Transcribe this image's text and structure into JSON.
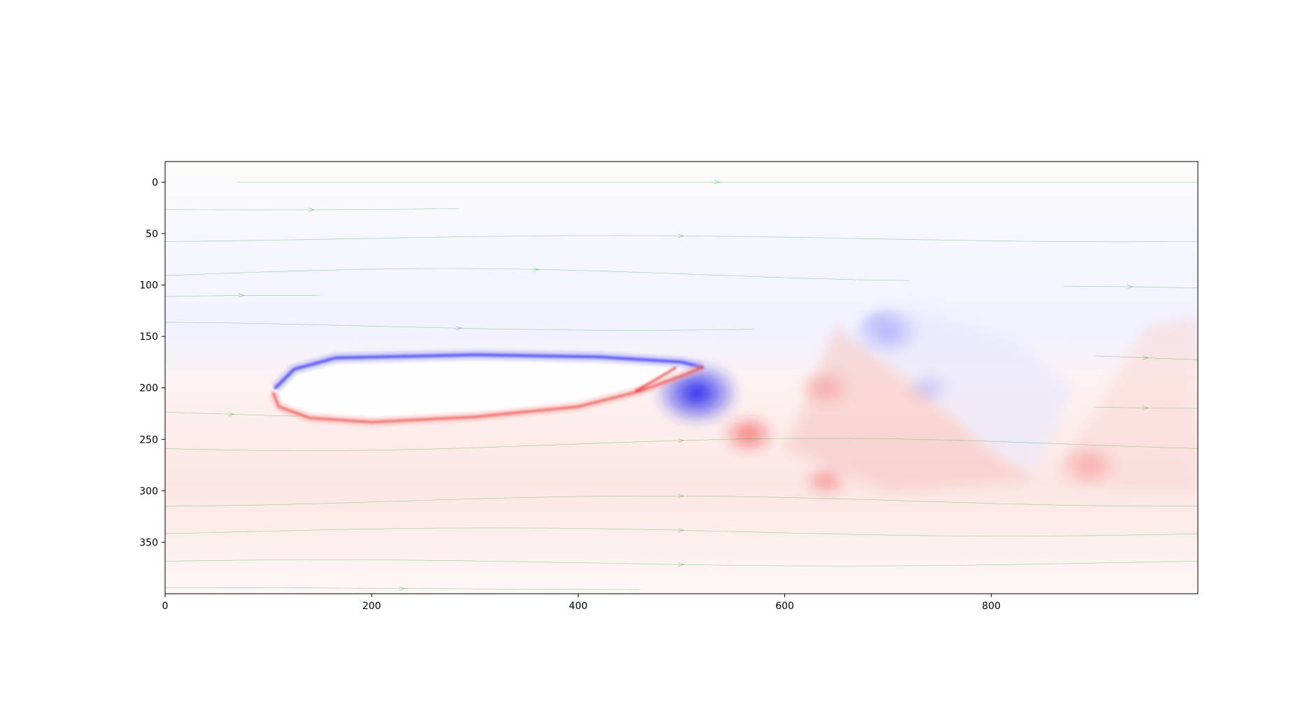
{
  "chart_data": {
    "type": "heatmap",
    "title": "",
    "xlabel": "",
    "ylabel": "",
    "xlim": [
      0,
      1000
    ],
    "ylim": [
      400,
      -20
    ],
    "x_ticks": [
      0,
      200,
      400,
      600,
      800
    ],
    "y_ticks": [
      0,
      50,
      100,
      150,
      200,
      250,
      300,
      350
    ],
    "x_tick_labels": [
      "0",
      "200",
      "400",
      "600",
      "800"
    ],
    "y_tick_labels": [
      "0",
      "50",
      "100",
      "150",
      "200",
      "250",
      "300",
      "350"
    ],
    "colormap": "bwr",
    "colors": {
      "negative": "#2222ee",
      "positive": "#ee2222",
      "neutral": "#ffffff",
      "streamlines": "#4caf50"
    },
    "grid": false,
    "obstacle_outline": [
      [
        107,
        200
      ],
      [
        125,
        182
      ],
      [
        165,
        171
      ],
      [
        300,
        168
      ],
      [
        420,
        170
      ],
      [
        500,
        175
      ],
      [
        520,
        180
      ],
      [
        500,
        188
      ],
      [
        460,
        203
      ],
      [
        400,
        218
      ],
      [
        300,
        228
      ],
      [
        200,
        233
      ],
      [
        140,
        229
      ],
      [
        110,
        218
      ],
      [
        105,
        205
      ]
    ],
    "vortices": [
      {
        "x": 515,
        "y": 205,
        "sign": "negative",
        "strength": 0.75
      },
      {
        "x": 700,
        "y": 145,
        "sign": "negative",
        "strength": 0.45
      },
      {
        "x": 895,
        "y": 275,
        "sign": "positive",
        "strength": 0.35
      },
      {
        "x": 565,
        "y": 245,
        "sign": "positive",
        "strength": 0.3
      },
      {
        "x": 640,
        "y": 200,
        "sign": "positive",
        "strength": 0.25
      },
      {
        "x": 740,
        "y": 200,
        "sign": "negative",
        "strength": 0.15
      },
      {
        "x": 640,
        "y": 290,
        "sign": "positive",
        "strength": 0.15
      }
    ],
    "streamlines": [
      {
        "y": 0,
        "x_range": [
          70,
          1000
        ],
        "wave": 0
      },
      {
        "y": 25,
        "x_range": [
          0,
          285
        ],
        "wave": 2
      },
      {
        "y": 55,
        "x_range": [
          0,
          1000
        ],
        "wave": 3
      },
      {
        "y": 90,
        "x_range": [
          0,
          720
        ],
        "wave": 6
      },
      {
        "y": 115,
        "x_range": [
          0,
          150
        ],
        "wave": 5
      },
      {
        "y": 140,
        "x_range": [
          0,
          570
        ],
        "wave": 4
      },
      {
        "y": 225,
        "x_range": [
          0,
          130
        ],
        "wave": 5
      },
      {
        "y": 255,
        "x_range": [
          0,
          1000
        ],
        "wave": 6
      },
      {
        "y": 310,
        "x_range": [
          0,
          1000
        ],
        "wave": 5
      },
      {
        "y": 340,
        "x_range": [
          0,
          1000
        ],
        "wave": 4
      },
      {
        "y": 370,
        "x_range": [
          0,
          1000
        ],
        "wave": 3
      },
      {
        "y": 395,
        "x_range": [
          0,
          460
        ],
        "wave": 1
      },
      {
        "y": 105,
        "x_range": [
          870,
          1000
        ],
        "wave": 4
      },
      {
        "y": 170,
        "x_range": [
          900,
          1000
        ],
        "wave": 6
      },
      {
        "y": 215,
        "x_range": [
          900,
          1000
        ],
        "wave": 5
      }
    ]
  }
}
